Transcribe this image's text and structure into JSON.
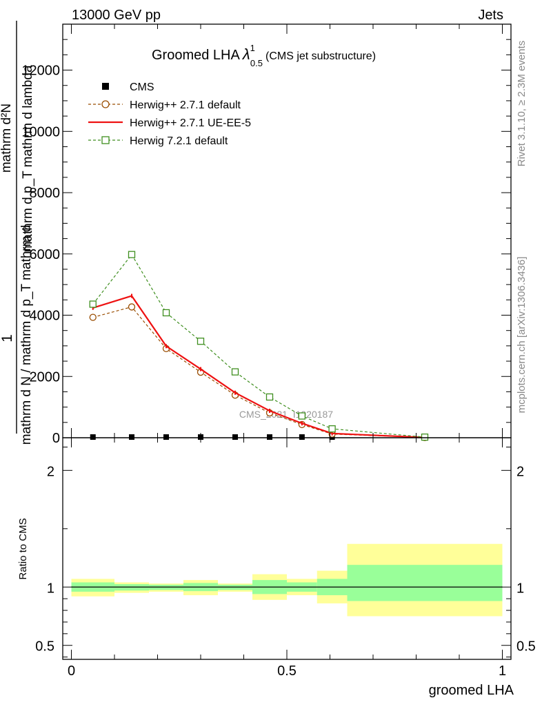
{
  "header": {
    "energy_label": "13000 GeV pp",
    "category_label": "Jets"
  },
  "side_text": {
    "rivet": "Rivet 3.1.10, ≥ 2.3M events",
    "mcplots": "mcplots.cern.ch [arXiv:1306.3436]"
  },
  "chart_data": [
    {
      "type": "line",
      "title": "Groomed LHA",
      "title_lambda": "λ",
      "title_sup": "1",
      "title_sub": "0.5",
      "title_note": "(CMS jet substructure)",
      "ylabel_numerator": "1",
      "ylabel_denominator_lines": [
        "mathrm d²N",
        "mathrm d p_T mathrm d lambda",
        "mathrm d N / mathrm d p_T mathrm d"
      ],
      "ylabel_text_parts": [
        "mathrm d",
        "N",
        "mathrm d p",
        "T",
        "mathrm d",
        "mathrm N / mathrm d p",
        "mathrm d lambda"
      ],
      "ylim": [
        0,
        13500
      ],
      "yticks": [
        0,
        2000,
        4000,
        6000,
        8000,
        10000,
        12000
      ],
      "ytick_labels": [
        "0",
        "2000",
        "4000",
        "6000",
        "8000",
        "10000",
        "12000"
      ],
      "xlim": [
        -0.02,
        1.02
      ],
      "watermark": "CMS_2021_I1920187",
      "legend_position": "top-left",
      "legend": [
        {
          "name": "CMS",
          "marker": "filled-square",
          "color": "#000000"
        },
        {
          "name": "Herwig++ 2.7.1 default",
          "marker": "open-circle",
          "color": "#994c00",
          "dash": true
        },
        {
          "name": "Herwig++ 2.7.1 UE-EE-5",
          "marker": "line",
          "color": "#ee1111",
          "dash": false
        },
        {
          "name": "Herwig 7.2.1 default",
          "marker": "open-square",
          "color": "#3e8e1e",
          "dash": true
        }
      ],
      "series": [
        {
          "name": "CMS",
          "x": [
            0.05,
            0.14,
            0.22,
            0.3,
            0.38,
            0.46,
            0.535,
            0.605,
            0.82
          ],
          "y": [
            0,
            0,
            0,
            0,
            0,
            0,
            0,
            0,
            0
          ]
        },
        {
          "name": "Herwig++ 2.7.1 default",
          "x": [
            0.05,
            0.14,
            0.22,
            0.3,
            0.38,
            0.46,
            0.535,
            0.605,
            0.82
          ],
          "y": [
            3930,
            4270,
            2910,
            2140,
            1390,
            810,
            430,
            120,
            8
          ]
        },
        {
          "name": "Herwig++ 2.7.1 UE-EE-5",
          "x": [
            0.05,
            0.14,
            0.22,
            0.3,
            0.38,
            0.46,
            0.535,
            0.605,
            0.82
          ],
          "y": [
            4240,
            4630,
            2990,
            2240,
            1470,
            880,
            470,
            140,
            10
          ]
        },
        {
          "name": "Herwig 7.2.1 default",
          "x": [
            0.05,
            0.14,
            0.22,
            0.3,
            0.38,
            0.46,
            0.535,
            0.605,
            0.82
          ],
          "y": [
            4360,
            5980,
            4080,
            3150,
            2150,
            1330,
            710,
            290,
            20
          ]
        }
      ]
    },
    {
      "type": "area",
      "ylabel": "Ratio to CMS",
      "xlabel": "groomed LHA",
      "ylim": [
        0.38,
        2.28
      ],
      "xlim": [
        -0.02,
        1.02
      ],
      "yticks": [
        0.5,
        1,
        2
      ],
      "ytick_labels": [
        "0.5",
        "1",
        "2"
      ],
      "xticks": [
        0,
        0.5,
        1
      ],
      "xtick_labels": [
        "0",
        "0.5",
        "1"
      ],
      "reference_line": 1,
      "bands": {
        "bin_edges": [
          0,
          0.1,
          0.18,
          0.26,
          0.34,
          0.42,
          0.5,
          0.57,
          0.64,
          1.0
        ],
        "yellow_low": [
          0.92,
          0.95,
          0.96,
          0.93,
          0.96,
          0.89,
          0.93,
          0.86,
          0.75
        ],
        "yellow_high": [
          1.07,
          1.04,
          1.03,
          1.06,
          1.03,
          1.11,
          1.07,
          1.14,
          1.37
        ],
        "green_low": [
          0.96,
          0.97,
          0.975,
          0.965,
          0.975,
          0.94,
          0.96,
          0.93,
          0.88
        ],
        "green_high": [
          1.04,
          1.025,
          1.02,
          1.035,
          1.02,
          1.06,
          1.04,
          1.07,
          1.19
        ]
      },
      "colors": {
        "yellow": "#ffff99",
        "green": "#99ff99"
      }
    }
  ]
}
